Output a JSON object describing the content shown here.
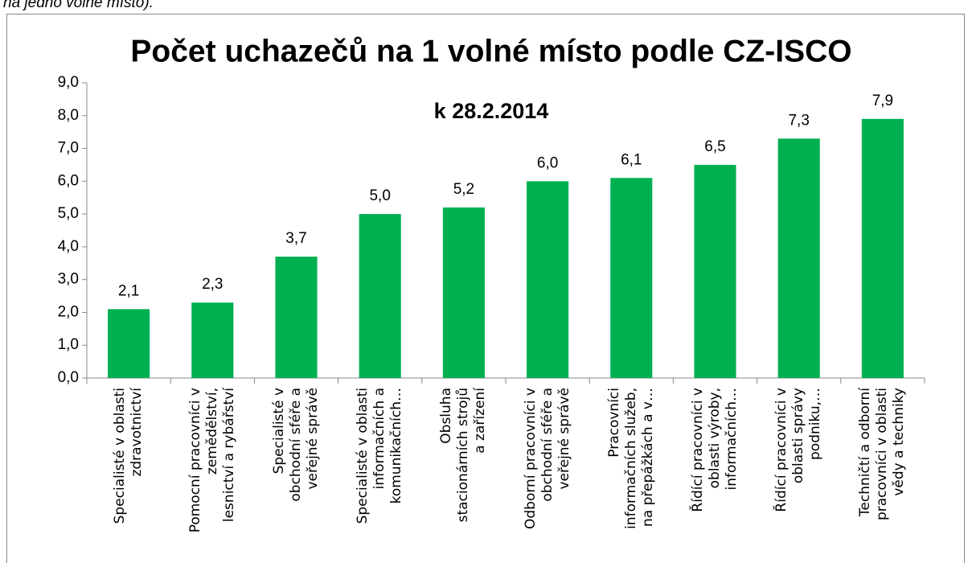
{
  "caption": "na jedno volné místo).",
  "chart_data": {
    "type": "bar",
    "title": "Počet uchazečů na 1 volné místo podle CZ-ISCO",
    "subtitle": "k 28.2.2014",
    "categories": [
      "Specialisté v oblasti\nzdravotnictví",
      "Pomocní pracovníci v\nzemědělství,\nlesnictví a rybářství",
      "Specialisté v\nobchodní sféře a\nveřejné správě",
      "Specialisté v oblasti\ninformačních a\nkomunikačních…",
      "Obsluha\nstacionárních strojů\na zařízení",
      "Odborní pracovníci v\nobchodní sféře a\nveřejné správě",
      "Pracovníci\ninformačních služeb,\nna přepážkách a v…",
      "Řídící pracovníci v\noblasti výroby,\ninformačních…",
      "Řídící pracovníci v\noblasti správy\npodniku,…",
      "Techničtí a odborní\npracovníci v oblasti\nvědy a techniky"
    ],
    "values": [
      2.1,
      2.3,
      3.7,
      5.0,
      5.2,
      6.0,
      6.1,
      6.5,
      7.3,
      7.9
    ],
    "value_labels": [
      "2,1",
      "2,3",
      "3,7",
      "5,0",
      "5,2",
      "6,0",
      "6,1",
      "6,5",
      "7,3",
      "7,9"
    ],
    "color": "#00b050",
    "ylim": [
      0,
      9
    ],
    "yticks": [
      {
        "value": 0,
        "label": "0,0"
      },
      {
        "value": 1,
        "label": "1,0"
      },
      {
        "value": 2,
        "label": "2,0"
      },
      {
        "value": 3,
        "label": "3,0"
      },
      {
        "value": 4,
        "label": "4,0"
      },
      {
        "value": 5,
        "label": "5,0"
      },
      {
        "value": 6,
        "label": "6,0"
      },
      {
        "value": 7,
        "label": "7,0"
      },
      {
        "value": 8,
        "label": "8,0"
      },
      {
        "value": 9,
        "label": "9,0"
      }
    ],
    "grid": false
  }
}
